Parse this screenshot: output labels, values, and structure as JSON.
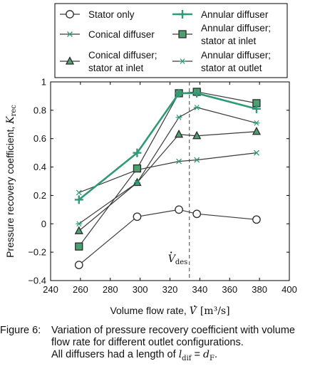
{
  "chart_data": {
    "type": "line",
    "xlabel_text": "Volume flow rate, ",
    "xlabel_symbol": "V",
    "xlabel_unit": "[m³/s]",
    "ylabel_text": "Pressure recovery coefficient, ",
    "ylabel_symbol": "K",
    "ylabel_sub": "rec",
    "xlim": [
      240,
      400
    ],
    "ylim": [
      -0.4,
      1.0
    ],
    "x_ticks": [
      240,
      260,
      280,
      300,
      320,
      340,
      360,
      380,
      400
    ],
    "y_ticks": [
      -0.4,
      -0.2,
      0,
      0.2,
      0.4,
      0.6,
      0.8,
      1
    ],
    "x_tick_labels": [
      "240",
      "260",
      "280",
      "300",
      "320",
      "340",
      "360",
      "380",
      "400"
    ],
    "y_tick_labels": [
      "−0.4",
      "−0.2",
      "0",
      "0.2",
      "0.4",
      "0.6",
      "0.8",
      "1"
    ],
    "reference_line": {
      "x": 333,
      "label_symbol": "V",
      "label_sub": "des"
    },
    "legend_placement": "top",
    "series": [
      {
        "name": "Stator only",
        "marker": "circle",
        "color": "#3a3a3a",
        "fill": "#ffffff",
        "width": 1.2,
        "x": [
          259,
          298,
          326,
          338,
          378
        ],
        "y": [
          -0.29,
          0.05,
          0.1,
          0.07,
          0.03
        ]
      },
      {
        "name": "Annular diffuser",
        "marker": "plus",
        "color": "#2e9a78",
        "width": 2.6,
        "x": [
          259,
          298,
          326,
          338,
          378
        ],
        "y": [
          0.17,
          0.5,
          0.92,
          0.92,
          0.81
        ]
      },
      {
        "name": "Conical diffuser",
        "marker": "x",
        "color": "#3a3a3a",
        "mcolor": "#2e9a78",
        "width": 1.2,
        "x": [
          259,
          298,
          326,
          338,
          378
        ],
        "y": [
          0.22,
          0.38,
          0.44,
          0.45,
          0.5
        ]
      },
      {
        "name": "Annular diffuser; stator at inlet",
        "marker": "square",
        "color": "#3a3a3a",
        "fill": "#4f9e70",
        "width": 1.2,
        "x": [
          259,
          298,
          326,
          338,
          378
        ],
        "y": [
          -0.16,
          0.39,
          0.92,
          0.93,
          0.85
        ]
      },
      {
        "name": "Conical diffuser; stator at inlet",
        "marker": "triangle",
        "color": "#3a3a3a",
        "fill": "#4f9e70",
        "width": 1.2,
        "x": [
          259,
          298,
          326,
          338,
          378
        ],
        "y": [
          -0.05,
          0.29,
          0.63,
          0.62,
          0.65
        ]
      },
      {
        "name": "Annular diffuser; stator at outlet",
        "marker": "star",
        "color": "#3a3a3a",
        "mcolor": "#2e9a78",
        "width": 1.2,
        "x": [
          259,
          298,
          326,
          338,
          378
        ],
        "y": [
          0.0,
          0.29,
          0.75,
          0.82,
          0.71
        ]
      }
    ],
    "legend_items": [
      {
        "series": 0,
        "lines": [
          "Stator only"
        ]
      },
      {
        "series": 1,
        "lines": [
          "Annular diffuser"
        ]
      },
      {
        "series": 2,
        "lines": [
          "Conical diffuser"
        ]
      },
      {
        "series": 3,
        "lines": [
          "Annular diffuser;",
          "stator at inlet"
        ]
      },
      {
        "series": 4,
        "lines": [
          "Conical diffuser;",
          "stator at inlet"
        ]
      },
      {
        "series": 5,
        "lines": [
          "Annular diffuser;",
          "stator at outlet"
        ]
      }
    ]
  },
  "caption": {
    "label": "Figure 6:",
    "text": "Variation of pressure recovery coefficient with volume flow rate for different outlet configurations.",
    "last_prefix": "All diffusers had a length of ",
    "last_symbol": "l",
    "last_sub": "dif",
    "last_eq": " = ",
    "last_symbol2": "d",
    "last_sub2": "F",
    "last_suffix": "."
  }
}
